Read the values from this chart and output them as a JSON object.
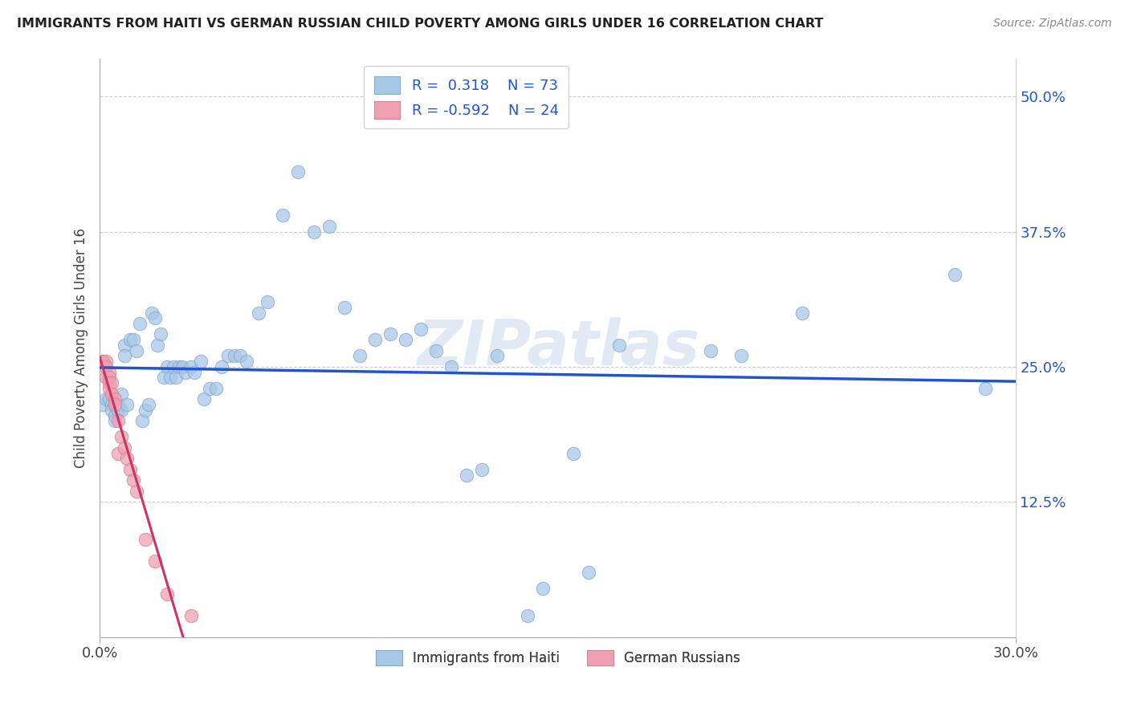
{
  "title": "IMMIGRANTS FROM HAITI VS GERMAN RUSSIAN CHILD POVERTY AMONG GIRLS UNDER 16 CORRELATION CHART",
  "source": "Source: ZipAtlas.com",
  "ylabel": "Child Poverty Among Girls Under 16",
  "ylabel_right_ticks": [
    "50.0%",
    "37.5%",
    "25.0%",
    "12.5%"
  ],
  "ylabel_right_values": [
    0.5,
    0.375,
    0.25,
    0.125
  ],
  "xmin": 0.0,
  "xmax": 0.3,
  "ymin": 0.0,
  "ymax": 0.535,
  "blue_color": "#a8c8e8",
  "pink_color": "#f0a0b0",
  "blue_line_color": "#2255cc",
  "pink_line_color": "#cc3366",
  "watermark": "ZIPatlas",
  "haiti_points": [
    [
      0.001,
      0.215
    ],
    [
      0.002,
      0.22
    ],
    [
      0.003,
      0.22
    ],
    [
      0.004,
      0.215
    ],
    [
      0.004,
      0.21
    ],
    [
      0.005,
      0.215
    ],
    [
      0.005,
      0.205
    ],
    [
      0.005,
      0.2
    ],
    [
      0.006,
      0.21
    ],
    [
      0.006,
      0.215
    ],
    [
      0.007,
      0.225
    ],
    [
      0.007,
      0.21
    ],
    [
      0.008,
      0.27
    ],
    [
      0.008,
      0.26
    ],
    [
      0.009,
      0.215
    ],
    [
      0.01,
      0.275
    ],
    [
      0.011,
      0.275
    ],
    [
      0.012,
      0.265
    ],
    [
      0.013,
      0.29
    ],
    [
      0.014,
      0.2
    ],
    [
      0.015,
      0.21
    ],
    [
      0.016,
      0.215
    ],
    [
      0.017,
      0.3
    ],
    [
      0.018,
      0.295
    ],
    [
      0.019,
      0.27
    ],
    [
      0.02,
      0.28
    ],
    [
      0.021,
      0.24
    ],
    [
      0.022,
      0.25
    ],
    [
      0.023,
      0.24
    ],
    [
      0.024,
      0.25
    ],
    [
      0.025,
      0.24
    ],
    [
      0.026,
      0.25
    ],
    [
      0.027,
      0.25
    ],
    [
      0.028,
      0.245
    ],
    [
      0.03,
      0.25
    ],
    [
      0.031,
      0.245
    ],
    [
      0.033,
      0.255
    ],
    [
      0.034,
      0.22
    ],
    [
      0.036,
      0.23
    ],
    [
      0.038,
      0.23
    ],
    [
      0.04,
      0.25
    ],
    [
      0.042,
      0.26
    ],
    [
      0.044,
      0.26
    ],
    [
      0.046,
      0.26
    ],
    [
      0.048,
      0.255
    ],
    [
      0.052,
      0.3
    ],
    [
      0.055,
      0.31
    ],
    [
      0.06,
      0.39
    ],
    [
      0.065,
      0.43
    ],
    [
      0.07,
      0.375
    ],
    [
      0.075,
      0.38
    ],
    [
      0.08,
      0.305
    ],
    [
      0.085,
      0.26
    ],
    [
      0.09,
      0.275
    ],
    [
      0.095,
      0.28
    ],
    [
      0.1,
      0.275
    ],
    [
      0.105,
      0.285
    ],
    [
      0.11,
      0.265
    ],
    [
      0.115,
      0.25
    ],
    [
      0.12,
      0.15
    ],
    [
      0.125,
      0.155
    ],
    [
      0.13,
      0.26
    ],
    [
      0.14,
      0.02
    ],
    [
      0.145,
      0.045
    ],
    [
      0.155,
      0.17
    ],
    [
      0.16,
      0.06
    ],
    [
      0.17,
      0.27
    ],
    [
      0.2,
      0.265
    ],
    [
      0.21,
      0.26
    ],
    [
      0.23,
      0.3
    ],
    [
      0.28,
      0.335
    ],
    [
      0.29,
      0.23
    ]
  ],
  "german_russian_points": [
    [
      0.001,
      0.255
    ],
    [
      0.001,
      0.255
    ],
    [
      0.002,
      0.255
    ],
    [
      0.002,
      0.25
    ],
    [
      0.002,
      0.24
    ],
    [
      0.003,
      0.245
    ],
    [
      0.003,
      0.24
    ],
    [
      0.003,
      0.235
    ],
    [
      0.003,
      0.23
    ],
    [
      0.004,
      0.235
    ],
    [
      0.004,
      0.225
    ],
    [
      0.005,
      0.22
    ],
    [
      0.005,
      0.215
    ],
    [
      0.006,
      0.2
    ],
    [
      0.006,
      0.17
    ],
    [
      0.007,
      0.185
    ],
    [
      0.008,
      0.175
    ],
    [
      0.009,
      0.165
    ],
    [
      0.01,
      0.155
    ],
    [
      0.011,
      0.145
    ],
    [
      0.012,
      0.135
    ],
    [
      0.015,
      0.09
    ],
    [
      0.018,
      0.07
    ],
    [
      0.022,
      0.04
    ],
    [
      0.03,
      0.02
    ]
  ]
}
